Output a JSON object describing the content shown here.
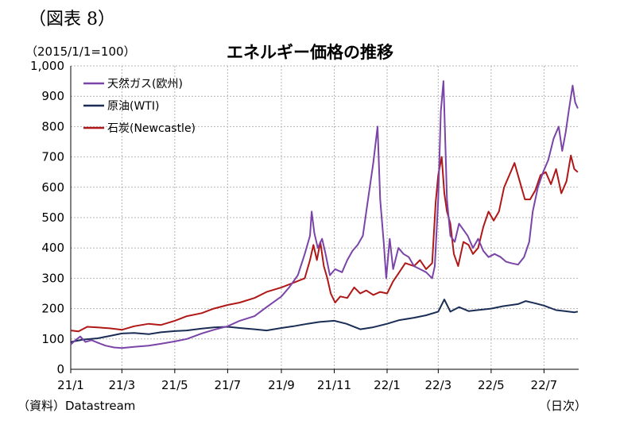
{
  "figure_label": "（図表 8）",
  "unit_note": "（2015/1/1=100）",
  "source_note": "（資料）Datastream",
  "axis_unit": "（日次）",
  "colors": {
    "gas": "#7a44a8",
    "oil": "#1a2d55",
    "coal": "#b01818",
    "grid": "#b4b4b4",
    "axis": "#000000"
  },
  "chart_data": {
    "type": "line",
    "title": "エネルギー価格の推移",
    "xlabel": "",
    "ylabel": "",
    "ylim": [
      0,
      1000
    ],
    "y_ticks": [
      0,
      100,
      200,
      300,
      400,
      500,
      600,
      700,
      800,
      900,
      1000
    ],
    "y_tick_labels": [
      "0",
      "100",
      "200",
      "300",
      "400",
      "500",
      "600",
      "700",
      "800",
      "900",
      "1,000"
    ],
    "x_tick_labels": [
      "21/1",
      "21/3",
      "21/5",
      "21/7",
      "21/9",
      "21/11",
      "22/1",
      "22/3",
      "22/5",
      "22/7"
    ],
    "x_tick_dates": [
      "2021-01-01",
      "2021-03-01",
      "2021-05-01",
      "2021-07-01",
      "2021-09-01",
      "2021-11-01",
      "2022-01-01",
      "2022-03-01",
      "2022-05-01",
      "2022-07-01"
    ],
    "xlim": [
      "2021-01-01",
      "2022-08-10"
    ],
    "grid": true,
    "legend_position": "top-left",
    "series": [
      {
        "name": "天然ガス(欧州)",
        "color": "#7a44a8",
        "points": [
          [
            "2021-01-01",
            82
          ],
          [
            "2021-01-06",
            95
          ],
          [
            "2021-01-12",
            108
          ],
          [
            "2021-01-18",
            90
          ],
          [
            "2021-01-25",
            96
          ],
          [
            "2021-02-01",
            88
          ],
          [
            "2021-02-10",
            78
          ],
          [
            "2021-02-20",
            72
          ],
          [
            "2021-03-01",
            70
          ],
          [
            "2021-03-15",
            74
          ],
          [
            "2021-04-01",
            78
          ],
          [
            "2021-04-15",
            84
          ],
          [
            "2021-05-01",
            92
          ],
          [
            "2021-05-15",
            100
          ],
          [
            "2021-06-01",
            118
          ],
          [
            "2021-06-15",
            130
          ],
          [
            "2021-07-01",
            142
          ],
          [
            "2021-07-15",
            160
          ],
          [
            "2021-08-01",
            175
          ],
          [
            "2021-08-15",
            205
          ],
          [
            "2021-09-01",
            240
          ],
          [
            "2021-09-10",
            270
          ],
          [
            "2021-09-20",
            310
          ],
          [
            "2021-09-28",
            380
          ],
          [
            "2021-10-04",
            440
          ],
          [
            "2021-10-06",
            520
          ],
          [
            "2021-10-09",
            450
          ],
          [
            "2021-10-13",
            400
          ],
          [
            "2021-10-18",
            430
          ],
          [
            "2021-10-22",
            380
          ],
          [
            "2021-10-27",
            310
          ],
          [
            "2021-11-02",
            330
          ],
          [
            "2021-11-10",
            320
          ],
          [
            "2021-11-16",
            360
          ],
          [
            "2021-11-22",
            390
          ],
          [
            "2021-11-28",
            410
          ],
          [
            "2021-12-04",
            440
          ],
          [
            "2021-12-10",
            560
          ],
          [
            "2021-12-16",
            680
          ],
          [
            "2021-12-21",
            800
          ],
          [
            "2021-12-24",
            560
          ],
          [
            "2021-12-28",
            420
          ],
          [
            "2021-12-31",
            300
          ],
          [
            "2022-01-04",
            430
          ],
          [
            "2022-01-08",
            330
          ],
          [
            "2022-01-14",
            400
          ],
          [
            "2022-01-20",
            380
          ],
          [
            "2022-01-26",
            370
          ],
          [
            "2022-02-01",
            340
          ],
          [
            "2022-02-08",
            330
          ],
          [
            "2022-02-15",
            320
          ],
          [
            "2022-02-22",
            300
          ],
          [
            "2022-02-25",
            340
          ],
          [
            "2022-03-01",
            560
          ],
          [
            "2022-03-04",
            850
          ],
          [
            "2022-03-07",
            950
          ],
          [
            "2022-03-09",
            760
          ],
          [
            "2022-03-11",
            560
          ],
          [
            "2022-03-15",
            440
          ],
          [
            "2022-03-20",
            420
          ],
          [
            "2022-03-25",
            480
          ],
          [
            "2022-03-30",
            460
          ],
          [
            "2022-04-04",
            440
          ],
          [
            "2022-04-10",
            400
          ],
          [
            "2022-04-16",
            430
          ],
          [
            "2022-04-22",
            390
          ],
          [
            "2022-04-28",
            370
          ],
          [
            "2022-05-05",
            380
          ],
          [
            "2022-05-12",
            370
          ],
          [
            "2022-05-18",
            355
          ],
          [
            "2022-05-24",
            350
          ],
          [
            "2022-06-01",
            345
          ],
          [
            "2022-06-08",
            370
          ],
          [
            "2022-06-14",
            420
          ],
          [
            "2022-06-18",
            520
          ],
          [
            "2022-06-24",
            600
          ],
          [
            "2022-06-30",
            650
          ],
          [
            "2022-07-06",
            690
          ],
          [
            "2022-07-12",
            760
          ],
          [
            "2022-07-18",
            800
          ],
          [
            "2022-07-22",
            720
          ],
          [
            "2022-07-26",
            780
          ],
          [
            "2022-07-30",
            860
          ],
          [
            "2022-08-03",
            935
          ],
          [
            "2022-08-06",
            880
          ],
          [
            "2022-08-09",
            860
          ]
        ]
      },
      {
        "name": "原油(WTI)",
        "color": "#1a2d55",
        "points": [
          [
            "2021-01-01",
            90
          ],
          [
            "2021-01-15",
            98
          ],
          [
            "2021-02-01",
            102
          ],
          [
            "2021-02-15",
            110
          ],
          [
            "2021-03-01",
            118
          ],
          [
            "2021-03-15",
            120
          ],
          [
            "2021-04-01",
            116
          ],
          [
            "2021-04-15",
            122
          ],
          [
            "2021-05-01",
            126
          ],
          [
            "2021-05-15",
            128
          ],
          [
            "2021-06-01",
            134
          ],
          [
            "2021-06-15",
            138
          ],
          [
            "2021-07-01",
            140
          ],
          [
            "2021-07-15",
            136
          ],
          [
            "2021-08-01",
            132
          ],
          [
            "2021-08-15",
            128
          ],
          [
            "2021-09-01",
            136
          ],
          [
            "2021-09-15",
            142
          ],
          [
            "2021-10-01",
            150
          ],
          [
            "2021-10-15",
            156
          ],
          [
            "2021-11-01",
            160
          ],
          [
            "2021-11-15",
            150
          ],
          [
            "2021-12-01",
            132
          ],
          [
            "2021-12-15",
            138
          ],
          [
            "2022-01-01",
            150
          ],
          [
            "2022-01-15",
            162
          ],
          [
            "2022-02-01",
            170
          ],
          [
            "2022-02-15",
            178
          ],
          [
            "2022-03-01",
            190
          ],
          [
            "2022-03-08",
            230
          ],
          [
            "2022-03-15",
            190
          ],
          [
            "2022-03-25",
            205
          ],
          [
            "2022-04-05",
            192
          ],
          [
            "2022-04-15",
            195
          ],
          [
            "2022-05-01",
            200
          ],
          [
            "2022-05-15",
            208
          ],
          [
            "2022-06-01",
            215
          ],
          [
            "2022-06-10",
            225
          ],
          [
            "2022-06-20",
            218
          ],
          [
            "2022-07-01",
            210
          ],
          [
            "2022-07-15",
            195
          ],
          [
            "2022-07-25",
            192
          ],
          [
            "2022-08-05",
            188
          ],
          [
            "2022-08-09",
            190
          ]
        ]
      },
      {
        "name": "石炭(Newcastle)",
        "color": "#b01818",
        "points": [
          [
            "2021-01-01",
            128
          ],
          [
            "2021-01-10",
            125
          ],
          [
            "2021-01-20",
            140
          ],
          [
            "2021-02-01",
            138
          ],
          [
            "2021-02-15",
            135
          ],
          [
            "2021-03-01",
            130
          ],
          [
            "2021-03-15",
            142
          ],
          [
            "2021-04-01",
            150
          ],
          [
            "2021-04-15",
            146
          ],
          [
            "2021-05-01",
            160
          ],
          [
            "2021-05-15",
            175
          ],
          [
            "2021-06-01",
            185
          ],
          [
            "2021-06-15",
            200
          ],
          [
            "2021-07-01",
            212
          ],
          [
            "2021-07-15",
            220
          ],
          [
            "2021-08-01",
            235
          ],
          [
            "2021-08-15",
            255
          ],
          [
            "2021-09-01",
            270
          ],
          [
            "2021-09-15",
            285
          ],
          [
            "2021-09-28",
            300
          ],
          [
            "2021-10-04",
            360
          ],
          [
            "2021-10-08",
            410
          ],
          [
            "2021-10-12",
            360
          ],
          [
            "2021-10-16",
            420
          ],
          [
            "2021-10-20",
            340
          ],
          [
            "2021-10-24",
            300
          ],
          [
            "2021-10-28",
            250
          ],
          [
            "2021-11-02",
            220
          ],
          [
            "2021-11-08",
            240
          ],
          [
            "2021-11-16",
            235
          ],
          [
            "2021-11-24",
            270
          ],
          [
            "2021-12-01",
            250
          ],
          [
            "2021-12-08",
            260
          ],
          [
            "2021-12-16",
            245
          ],
          [
            "2021-12-24",
            255
          ],
          [
            "2022-01-01",
            250
          ],
          [
            "2022-01-08",
            290
          ],
          [
            "2022-01-15",
            320
          ],
          [
            "2022-01-22",
            350
          ],
          [
            "2022-02-01",
            340
          ],
          [
            "2022-02-08",
            360
          ],
          [
            "2022-02-15",
            330
          ],
          [
            "2022-02-22",
            350
          ],
          [
            "2022-02-26",
            550
          ],
          [
            "2022-03-01",
            640
          ],
          [
            "2022-03-05",
            700
          ],
          [
            "2022-03-08",
            580
          ],
          [
            "2022-03-11",
            520
          ],
          [
            "2022-03-15",
            480
          ],
          [
            "2022-03-19",
            380
          ],
          [
            "2022-03-24",
            340
          ],
          [
            "2022-03-30",
            420
          ],
          [
            "2022-04-05",
            410
          ],
          [
            "2022-04-10",
            380
          ],
          [
            "2022-04-16",
            400
          ],
          [
            "2022-04-22",
            470
          ],
          [
            "2022-04-28",
            520
          ],
          [
            "2022-05-04",
            490
          ],
          [
            "2022-05-10",
            520
          ],
          [
            "2022-05-16",
            600
          ],
          [
            "2022-05-22",
            640
          ],
          [
            "2022-05-28",
            680
          ],
          [
            "2022-06-03",
            620
          ],
          [
            "2022-06-09",
            560
          ],
          [
            "2022-06-15",
            560
          ],
          [
            "2022-06-21",
            590
          ],
          [
            "2022-06-27",
            640
          ],
          [
            "2022-07-03",
            650
          ],
          [
            "2022-07-09",
            610
          ],
          [
            "2022-07-15",
            660
          ],
          [
            "2022-07-21",
            580
          ],
          [
            "2022-07-27",
            620
          ],
          [
            "2022-08-01",
            705
          ],
          [
            "2022-08-05",
            660
          ],
          [
            "2022-08-09",
            650
          ]
        ]
      }
    ]
  }
}
